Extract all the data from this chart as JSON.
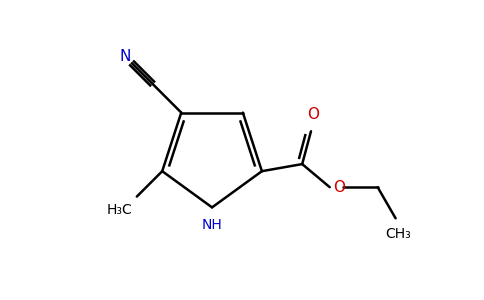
{
  "background_color": "#ffffff",
  "line_color": "#000000",
  "blue_color": "#0000cd",
  "red_color": "#cc0000",
  "line_width": 1.8,
  "figsize": [
    4.84,
    3.0
  ],
  "dpi": 100,
  "xlim": [
    0,
    9.5
  ],
  "ylim": [
    0,
    5.9
  ]
}
